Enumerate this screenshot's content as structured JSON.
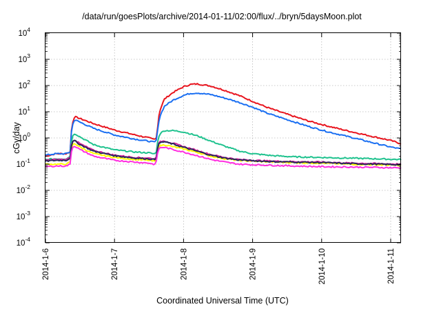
{
  "chart_data": {
    "type": "line",
    "title": "/data/run/goesPlots/archive/2014-01-11/02:00/flux/../bryn/5daysMoon.plot",
    "xlabel": "Coordinated Universal Time (UTC)",
    "ylabel": "cGy/day",
    "x_ticks": [
      "2014-1-6",
      "2014-1-7",
      "2014-1-8",
      "2014-1-9",
      "2014-1-10",
      "2014-1-11"
    ],
    "x_range_days": [
      0,
      5.15
    ],
    "y_scale": "log",
    "ylim": [
      0.0001,
      10000
    ],
    "y_ticks": [
      {
        "base": "10",
        "exp": "-4"
      },
      {
        "base": "10",
        "exp": "-3"
      },
      {
        "base": "10",
        "exp": "-2"
      },
      {
        "base": "10",
        "exp": "-1"
      },
      {
        "base": "10",
        "exp": "0"
      },
      {
        "base": "10",
        "exp": "1"
      },
      {
        "base": "10",
        "exp": "2"
      },
      {
        "base": "10",
        "exp": "3"
      },
      {
        "base": "10",
        "exp": "4"
      }
    ],
    "grid": true,
    "legend": "none",
    "series": [
      {
        "color": "#e8141e",
        "x": [
          0,
          0.15,
          0.3,
          0.36,
          0.38,
          0.42,
          0.5,
          0.7,
          1.0,
          1.3,
          1.5,
          1.56,
          1.6,
          1.62,
          1.65,
          1.72,
          1.85,
          2.0,
          2.1,
          2.2,
          2.4,
          2.6,
          2.8,
          3.0,
          3.2,
          3.5,
          3.8,
          4.1,
          4.4,
          4.7,
          5.0,
          5.15
        ],
        "y": [
          0.2,
          0.25,
          0.25,
          0.3,
          3,
          6.5,
          5.5,
          3.5,
          2.0,
          1.3,
          1.0,
          0.9,
          0.9,
          2.0,
          10,
          30,
          55,
          90,
          110,
          115,
          95,
          65,
          42,
          25,
          15,
          8,
          4.5,
          2.8,
          1.8,
          1.2,
          0.8,
          0.6
        ]
      },
      {
        "color": "#1a6ff2",
        "x": [
          0,
          0.15,
          0.3,
          0.36,
          0.38,
          0.42,
          0.5,
          0.7,
          1.0,
          1.3,
          1.5,
          1.56,
          1.6,
          1.62,
          1.65,
          1.72,
          1.85,
          2.0,
          2.1,
          2.2,
          2.4,
          2.6,
          2.8,
          3.0,
          3.2,
          3.5,
          3.8,
          4.1,
          4.4,
          4.7,
          5.0,
          5.15
        ],
        "y": [
          0.22,
          0.25,
          0.25,
          0.3,
          2.5,
          5,
          4,
          2.3,
          1.3,
          0.9,
          0.75,
          0.7,
          0.7,
          1.5,
          6,
          16,
          28,
          42,
          50,
          52,
          45,
          33,
          23,
          15,
          9,
          5,
          2.8,
          1.7,
          1.1,
          0.7,
          0.45,
          0.38
        ]
      },
      {
        "color": "#1fc28e",
        "x": [
          0,
          0.15,
          0.3,
          0.36,
          0.38,
          0.42,
          0.5,
          0.7,
          1.0,
          1.3,
          1.5,
          1.56,
          1.6,
          1.62,
          1.65,
          1.72,
          1.85,
          2.0,
          2.2,
          2.4,
          2.6,
          2.8,
          3.0,
          3.3,
          3.6,
          4.0,
          4.4,
          4.8,
          5.15
        ],
        "y": [
          0.15,
          0.16,
          0.16,
          0.2,
          1.0,
          1.5,
          1.1,
          0.55,
          0.35,
          0.29,
          0.27,
          0.25,
          0.25,
          0.6,
          1.4,
          1.9,
          1.9,
          1.7,
          1.2,
          0.75,
          0.48,
          0.32,
          0.25,
          0.21,
          0.19,
          0.18,
          0.17,
          0.16,
          0.15
        ]
      },
      {
        "color": "#ffff00",
        "x": [
          0,
          0.15,
          0.3,
          0.36,
          0.38,
          0.42,
          0.5,
          0.7,
          1.0,
          1.3,
          1.5,
          1.56,
          1.6,
          1.62,
          1.65,
          1.72,
          1.85,
          2.0,
          2.2,
          2.4,
          2.6,
          2.8,
          3.0,
          3.3,
          3.6,
          4.0,
          4.4,
          4.8,
          5.15
        ],
        "y": [
          0.1,
          0.1,
          0.1,
          0.12,
          0.5,
          0.62,
          0.45,
          0.25,
          0.18,
          0.15,
          0.14,
          0.13,
          0.13,
          0.3,
          0.5,
          0.55,
          0.46,
          0.38,
          0.28,
          0.2,
          0.16,
          0.14,
          0.13,
          0.12,
          0.115,
          0.11,
          0.1,
          0.095,
          0.09
        ]
      },
      {
        "color": "#d4249c",
        "x": [
          0,
          0.15,
          0.3,
          0.36,
          0.38,
          0.42,
          0.5,
          0.7,
          1.0,
          1.3,
          1.5,
          1.56,
          1.6,
          1.62,
          1.65,
          1.72,
          1.85,
          2.0,
          2.2,
          2.4,
          2.6,
          2.8,
          3.0,
          3.3,
          3.6,
          4.0,
          4.4,
          4.8,
          5.15
        ],
        "y": [
          0.14,
          0.15,
          0.15,
          0.18,
          0.7,
          0.85,
          0.6,
          0.33,
          0.22,
          0.18,
          0.17,
          0.16,
          0.16,
          0.4,
          0.7,
          0.78,
          0.62,
          0.47,
          0.33,
          0.23,
          0.18,
          0.15,
          0.14,
          0.13,
          0.125,
          0.12,
          0.11,
          0.105,
          0.1
        ]
      },
      {
        "color": "#28285a",
        "x": [
          0,
          0.15,
          0.3,
          0.36,
          0.38,
          0.42,
          0.5,
          0.7,
          1.0,
          1.3,
          1.5,
          1.56,
          1.6,
          1.62,
          1.65,
          1.72,
          1.85,
          2.0,
          2.2,
          2.4,
          2.6,
          2.8,
          3.0,
          3.3,
          3.6,
          4.0,
          4.4,
          4.8,
          5.15
        ],
        "y": [
          0.13,
          0.14,
          0.14,
          0.17,
          0.65,
          0.8,
          0.56,
          0.31,
          0.21,
          0.17,
          0.16,
          0.15,
          0.15,
          0.38,
          0.65,
          0.72,
          0.58,
          0.44,
          0.31,
          0.22,
          0.17,
          0.145,
          0.135,
          0.125,
          0.12,
          0.115,
          0.105,
          0.1,
          0.095
        ]
      },
      {
        "color": "#ff2ee0",
        "x": [
          0,
          0.15,
          0.3,
          0.36,
          0.38,
          0.42,
          0.5,
          0.7,
          1.0,
          1.3,
          1.5,
          1.56,
          1.6,
          1.62,
          1.65,
          1.72,
          1.85,
          2.0,
          2.2,
          2.4,
          2.6,
          2.8,
          3.0,
          3.3,
          3.6,
          4.0,
          4.4,
          4.8,
          5.15
        ],
        "y": [
          0.08,
          0.085,
          0.085,
          0.1,
          0.4,
          0.5,
          0.36,
          0.2,
          0.14,
          0.12,
          0.11,
          0.1,
          0.1,
          0.25,
          0.42,
          0.44,
          0.36,
          0.29,
          0.21,
          0.15,
          0.12,
          0.1,
          0.095,
          0.09,
          0.085,
          0.08,
          0.078,
          0.075,
          0.072
        ]
      }
    ]
  }
}
